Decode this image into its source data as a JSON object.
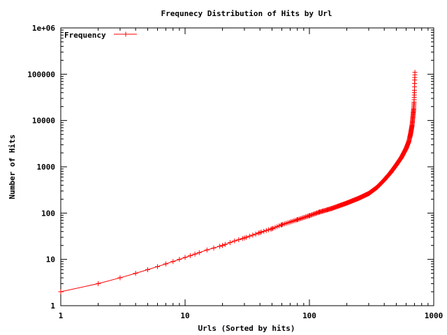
{
  "chart_data": {
    "type": "line",
    "title": "Frequnecy Distribution of Hits by Url",
    "xlabel": "Urls (Sorted by hits)",
    "ylabel": "Number of Hits",
    "x_scale": "log",
    "y_scale": "log",
    "xlim": [
      1,
      1000
    ],
    "ylim": [
      1,
      1000000
    ],
    "x_ticks": [
      "1",
      "10",
      "100",
      "1000"
    ],
    "y_ticks": [
      "1",
      "10",
      "100",
      "1000",
      "10000",
      "100000",
      "1e+06"
    ],
    "legend_position": "top-left",
    "grid": false,
    "series": [
      {
        "name": "Frequency",
        "color": "#ff0000",
        "marker": "plus",
        "x": [
          1,
          2,
          3,
          4,
          5,
          6,
          7,
          8,
          9,
          10,
          12,
          15,
          20,
          25,
          30,
          40,
          50,
          60,
          80,
          100,
          120,
          150,
          200,
          250,
          300,
          350,
          400,
          450,
          500,
          550,
          600,
          630,
          650,
          670,
          680,
          690,
          695,
          700,
          703,
          706
        ],
        "y": [
          2,
          3,
          4,
          5,
          6,
          7,
          8,
          9,
          10,
          11,
          13,
          16,
          20,
          25,
          29,
          38,
          46,
          56,
          72,
          88,
          105,
          125,
          165,
          210,
          265,
          360,
          520,
          750,
          1100,
          1600,
          2500,
          3500,
          5000,
          8000,
          12000,
          18000,
          25000,
          45000,
          75000,
          110000
        ]
      }
    ]
  }
}
